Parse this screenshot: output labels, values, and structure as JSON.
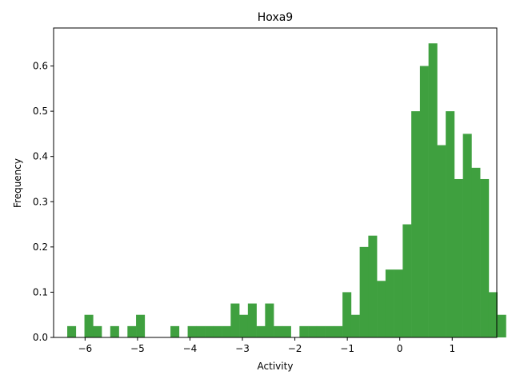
{
  "chart_data": {
    "type": "bar",
    "title": "Hoxa9",
    "xlabel": "Activity",
    "ylabel": "Frequency",
    "xlim": [
      -6.6,
      1.85
    ],
    "ylim": [
      0,
      0.684
    ],
    "bin_width": 0.164,
    "bin_start": -6.34,
    "color": "#3fa03f",
    "grid": false,
    "legend": "none",
    "x_ticks": [
      {
        "value": -6,
        "label": "−6"
      },
      {
        "value": -5,
        "label": "−5"
      },
      {
        "value": -4,
        "label": "−4"
      },
      {
        "value": -3,
        "label": "−3"
      },
      {
        "value": -2,
        "label": "−2"
      },
      {
        "value": -1,
        "label": "−1"
      },
      {
        "value": 0,
        "label": "0"
      },
      {
        "value": 1,
        "label": "1"
      }
    ],
    "y_ticks": [
      {
        "value": 0.0,
        "label": "0.0"
      },
      {
        "value": 0.1,
        "label": "0.1"
      },
      {
        "value": 0.2,
        "label": "0.2"
      },
      {
        "value": 0.3,
        "label": "0.3"
      },
      {
        "value": 0.4,
        "label": "0.4"
      },
      {
        "value": 0.5,
        "label": "0.5"
      },
      {
        "value": 0.6,
        "label": "0.6"
      }
    ],
    "values": [
      0.025,
      0,
      0.05,
      0.025,
      0,
      0.025,
      0,
      0.025,
      0.05,
      0,
      0,
      0,
      0.025,
      0,
      0.025,
      0.025,
      0.025,
      0.025,
      0.025,
      0.075,
      0.05,
      0.075,
      0.025,
      0.075,
      0.025,
      0.025,
      0,
      0.025,
      0.025,
      0.025,
      0.025,
      0.025,
      0.1,
      0.05,
      0.2,
      0.225,
      0.125,
      0.15,
      0.15,
      0.25,
      0.5,
      0.6,
      0.65,
      0.425,
      0.5,
      0.35,
      0.45,
      0.375,
      0.35,
      0.1,
      0.05
    ]
  }
}
